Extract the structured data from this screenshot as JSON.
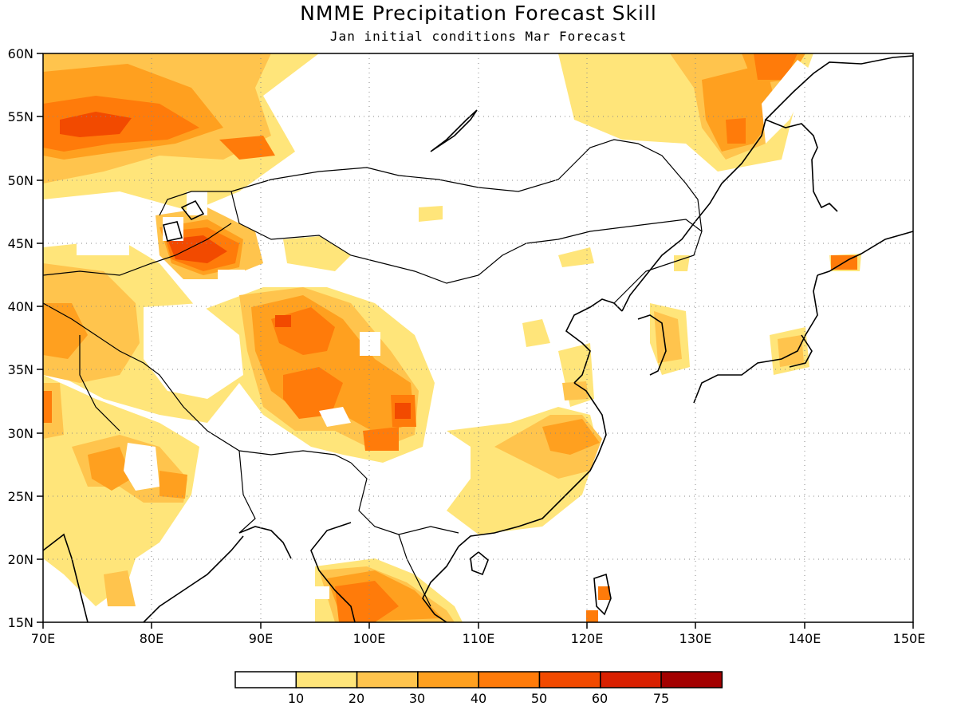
{
  "title": "NMME Precipitation Forecast Skill",
  "subtitle": "Jan initial conditions  Mar Forecast",
  "map": {
    "lon_range": [
      70,
      150
    ],
    "lat_range": [
      15,
      60
    ],
    "lat_ticks": [
      "15N",
      "20N",
      "25N",
      "30N",
      "35N",
      "40N",
      "45N",
      "50N",
      "55N",
      "60N"
    ],
    "lon_ticks": [
      "70E",
      "80E",
      "90E",
      "100E",
      "110E",
      "120E",
      "130E",
      "140E",
      "150E"
    ],
    "grid": "dotted"
  },
  "colorbar": {
    "labels": [
      "10",
      "20",
      "30",
      "40",
      "50",
      "60",
      "75"
    ],
    "colors": [
      "#ffffff",
      "#ffe57a",
      "#ffc44d",
      "#ffa01f",
      "#ff7b0a",
      "#f24a00",
      "#d92000",
      "#a30000"
    ]
  }
}
